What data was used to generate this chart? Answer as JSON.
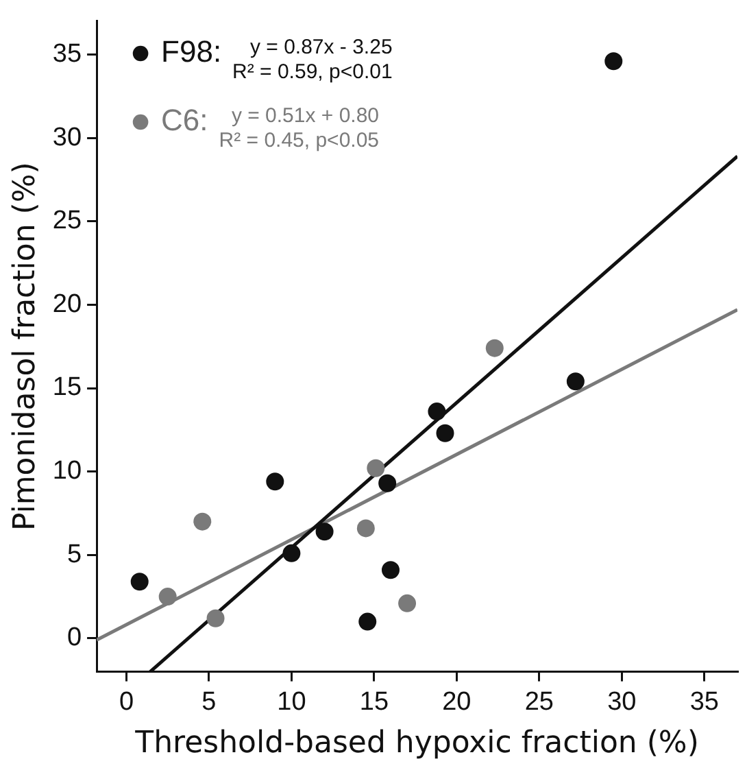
{
  "chart_data": {
    "type": "scatter",
    "xlabel": "Threshold-based hypoxic fraction (%)",
    "ylabel": "Pimonidasol fraction (%)",
    "xlim": [
      -1.8,
      37
    ],
    "xticks": [
      0,
      5,
      10,
      15,
      20,
      25,
      30,
      35
    ],
    "ylim": [
      -2,
      37
    ],
    "yticks": [
      0,
      5,
      10,
      15,
      20,
      25,
      30,
      35
    ],
    "grid": false,
    "legend": "top left",
    "marker": "circle",
    "series": [
      {
        "name": "F98:",
        "color": "#111111",
        "x": [
          0.8,
          9,
          10,
          12,
          14.6,
          15.8,
          16,
          18.8,
          19.3,
          27.2,
          29.5
        ],
        "values": [
          3.4,
          9.4,
          5.1,
          6.4,
          1.0,
          9.3,
          4.1,
          13.6,
          12.3,
          15.4,
          34.6
        ]
      },
      {
        "name": "C6:",
        "color": "#7a7a7a",
        "x": [
          2.5,
          4.6,
          5.4,
          14.5,
          15.1,
          17,
          22.3
        ],
        "values": [
          2.5,
          7.0,
          1.2,
          6.6,
          10.2,
          2.1,
          17.4
        ]
      },
      {
        "type": "line",
        "color": "#111111",
        "marker": "none",
        "x": [
          1.44,
          37
        ],
        "values": [
          -2,
          28.9
        ]
      },
      {
        "type": "line",
        "color": "#7a7a7a",
        "marker": "none",
        "x": [
          -1.8,
          37
        ],
        "values": [
          -0.1,
          19.7
        ]
      }
    ],
    "annotations": [
      "y = 0.87x - 3.25",
      "R² = 0.59, p<0.01",
      "y = 0.51x + 0.80",
      "R² = 0.45, p<0.05"
    ]
  }
}
